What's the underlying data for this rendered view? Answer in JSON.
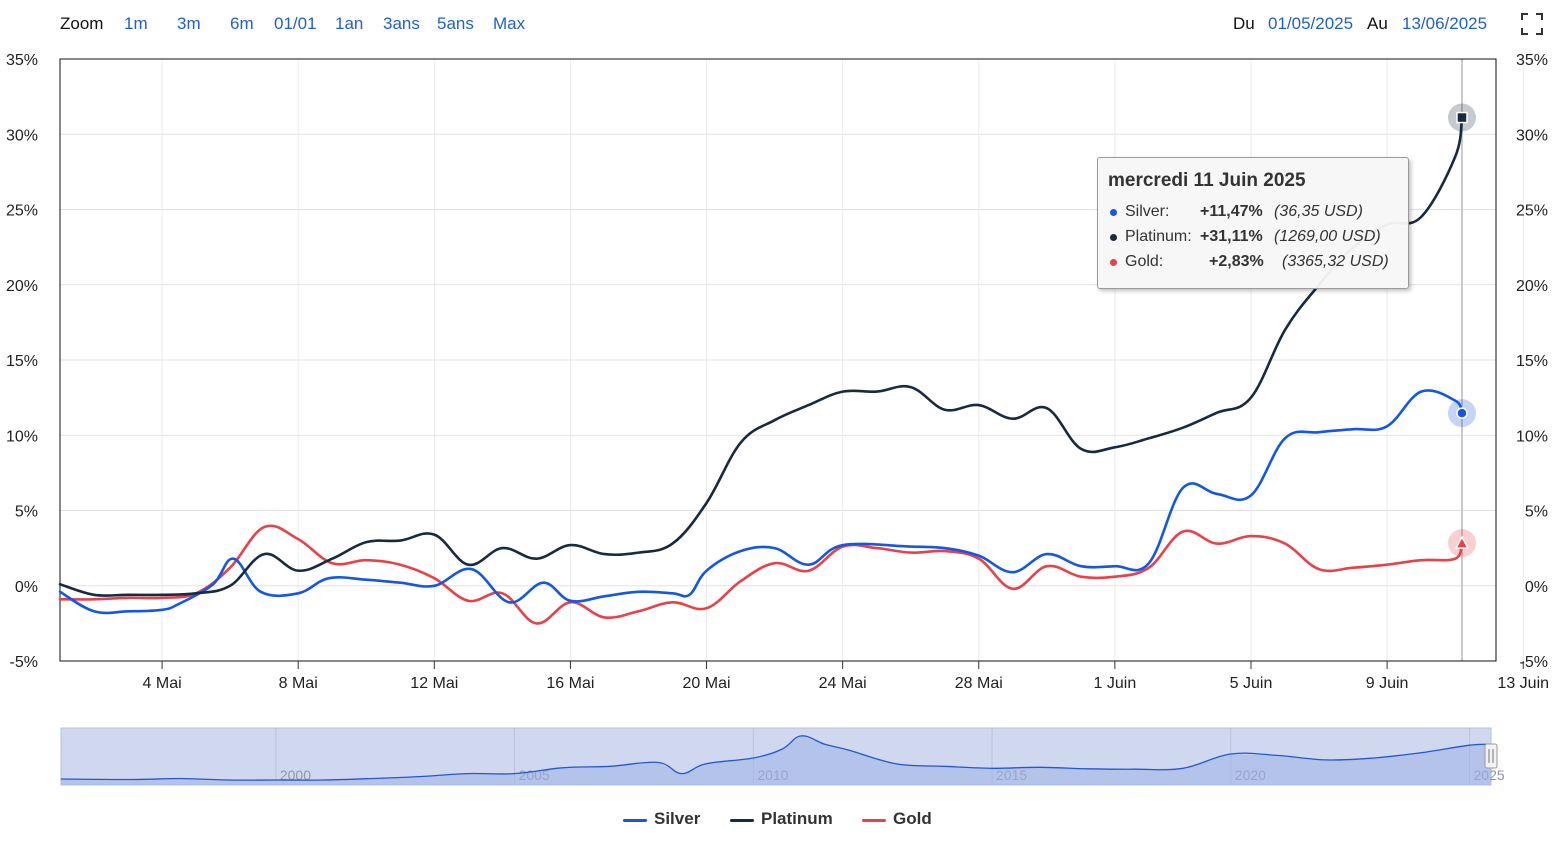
{
  "toolbar": {
    "zoom_label": "Zoom",
    "zoom_options": [
      "1m",
      "3m",
      "6m",
      "01/01",
      "1an",
      "3ans",
      "5ans",
      "Max"
    ],
    "from_label": "Du",
    "from_date": "01/05/2025",
    "to_label": "Au",
    "to_date": "13/06/2025",
    "link_color": "#1f5fd6"
  },
  "tooltip": {
    "title": "mercredi 11 Juin 2025",
    "rows": [
      {
        "name": "Silver:",
        "pct": "+11,47%",
        "usd": "(36,35 USD)",
        "color": "#1456e8"
      },
      {
        "name": "Platinum:",
        "pct": "+31,11%",
        "usd": "(1269,00 USD)",
        "color": "#172a40"
      },
      {
        "name": "Gold:",
        "pct": "+2,83%",
        "usd": "(3365,32 USD)",
        "color": "#e8414a"
      }
    ]
  },
  "legend": [
    {
      "name": "Silver",
      "color": "#1456e8"
    },
    {
      "name": "Platinum",
      "color": "#172a40"
    },
    {
      "name": "Gold",
      "color": "#e8414a"
    }
  ],
  "chart_data": {
    "type": "line",
    "x_unit": "day",
    "x_start_date": "2025-05-01",
    "xlim": [
      "2025-05-01",
      "2025-06-13"
    ],
    "ylim": [
      -5,
      35
    ],
    "y_tick_values": [
      -5,
      0,
      5,
      10,
      15,
      20,
      25,
      30,
      35
    ],
    "y_tick_labels": [
      "-5%",
      "0%",
      "5%",
      "10%",
      "15%",
      "20%",
      "25%",
      "30%",
      "35%"
    ],
    "x_tick_values": [
      3,
      7,
      11,
      15,
      19,
      23,
      27,
      31,
      35,
      39,
      43
    ],
    "x_tick_labels": [
      "4 Mai",
      "8 Mai",
      "12 Mai",
      "16 Mai",
      "20 Mai",
      "24 Mai",
      "28 Mai",
      "1 Juin",
      "5 Juin",
      "9 Juin",
      "13 Juin"
    ],
    "grid": true,
    "crosshair_x": 41.2,
    "series": [
      {
        "name": "Silver",
        "color": "#1456e8",
        "marker": "circle",
        "points": [
          [
            0,
            -0.4
          ],
          [
            1,
            -1.7
          ],
          [
            2,
            -1.7
          ],
          [
            3,
            -1.6
          ],
          [
            3.5,
            -1.2
          ],
          [
            4.5,
            0.1
          ],
          [
            5.1,
            1.8
          ],
          [
            5.9,
            -0.4
          ],
          [
            7,
            -0.5
          ],
          [
            7.9,
            0.5
          ],
          [
            9,
            0.4
          ],
          [
            10,
            0.2
          ],
          [
            11,
            0.0
          ],
          [
            12.1,
            1.1
          ],
          [
            13.2,
            -1.1
          ],
          [
            14.2,
            0.2
          ],
          [
            15,
            -1.0
          ],
          [
            16,
            -0.7
          ],
          [
            17,
            -0.4
          ],
          [
            18,
            -0.5
          ],
          [
            18.5,
            -0.6
          ],
          [
            19,
            1.0
          ],
          [
            20,
            2.3
          ],
          [
            21,
            2.5
          ],
          [
            22,
            1.4
          ],
          [
            23,
            2.7
          ],
          [
            25,
            2.6
          ],
          [
            26,
            2.5
          ],
          [
            27,
            2.0
          ],
          [
            28,
            0.9
          ],
          [
            29,
            2.1
          ],
          [
            30,
            1.3
          ],
          [
            31,
            1.3
          ],
          [
            32,
            1.5
          ],
          [
            33,
            6.5
          ],
          [
            34,
            6.1
          ],
          [
            35,
            6.0
          ],
          [
            36,
            9.8
          ],
          [
            37,
            10.2
          ],
          [
            38,
            10.4
          ],
          [
            39,
            10.6
          ],
          [
            40,
            12.9
          ],
          [
            41,
            12.3
          ],
          [
            41.2,
            11.47
          ]
        ]
      },
      {
        "name": "Platinum",
        "color": "#172a40",
        "marker": "square",
        "points": [
          [
            0,
            0.1
          ],
          [
            1,
            -0.6
          ],
          [
            2,
            -0.6
          ],
          [
            3,
            -0.6
          ],
          [
            4,
            -0.5
          ],
          [
            5,
            0.0
          ],
          [
            6,
            2.1
          ],
          [
            7,
            1.0
          ],
          [
            8,
            1.8
          ],
          [
            9,
            2.9
          ],
          [
            10,
            3.0
          ],
          [
            11,
            3.4
          ],
          [
            12,
            1.4
          ],
          [
            13,
            2.5
          ],
          [
            14,
            1.8
          ],
          [
            15,
            2.7
          ],
          [
            16,
            2.1
          ],
          [
            17,
            2.2
          ],
          [
            18,
            2.8
          ],
          [
            19,
            5.5
          ],
          [
            20,
            9.5
          ],
          [
            21,
            11.0
          ],
          [
            22,
            12.0
          ],
          [
            23,
            12.9
          ],
          [
            24,
            12.9
          ],
          [
            25,
            13.2
          ],
          [
            26,
            11.7
          ],
          [
            27,
            12.0
          ],
          [
            28,
            11.1
          ],
          [
            29,
            11.8
          ],
          [
            30,
            9.1
          ],
          [
            31,
            9.2
          ],
          [
            32,
            9.8
          ],
          [
            33,
            10.5
          ],
          [
            34,
            11.5
          ],
          [
            35,
            12.5
          ],
          [
            36,
            17.0
          ],
          [
            37,
            20.0
          ],
          [
            38,
            22.5
          ],
          [
            39,
            24.0
          ],
          [
            40,
            24.5
          ],
          [
            41,
            28.5
          ],
          [
            41.2,
            31.11
          ]
        ]
      },
      {
        "name": "Gold",
        "color": "#e8414a",
        "marker": "triangle",
        "points": [
          [
            0,
            -0.9
          ],
          [
            1,
            -0.9
          ],
          [
            2,
            -0.8
          ],
          [
            3,
            -0.8
          ],
          [
            4,
            -0.5
          ],
          [
            5,
            1.2
          ],
          [
            6,
            3.9
          ],
          [
            7,
            3.1
          ],
          [
            8,
            1.5
          ],
          [
            9,
            1.7
          ],
          [
            10,
            1.4
          ],
          [
            11,
            0.5
          ],
          [
            12,
            -1.0
          ],
          [
            13,
            -0.5
          ],
          [
            14,
            -2.5
          ],
          [
            15,
            -1.1
          ],
          [
            16,
            -2.1
          ],
          [
            17,
            -1.7
          ],
          [
            18,
            -1.1
          ],
          [
            19,
            -1.5
          ],
          [
            20,
            0.3
          ],
          [
            21,
            1.5
          ],
          [
            22,
            1.0
          ],
          [
            23,
            2.6
          ],
          [
            24,
            2.5
          ],
          [
            25,
            2.2
          ],
          [
            26,
            2.3
          ],
          [
            27,
            1.8
          ],
          [
            28,
            -0.2
          ],
          [
            29,
            1.3
          ],
          [
            30,
            0.6
          ],
          [
            31,
            0.6
          ],
          [
            32,
            1.2
          ],
          [
            33,
            3.6
          ],
          [
            34,
            2.8
          ],
          [
            35,
            3.3
          ],
          [
            36,
            2.8
          ],
          [
            37,
            1.1
          ],
          [
            38,
            1.2
          ],
          [
            39,
            1.4
          ],
          [
            40,
            1.7
          ],
          [
            41,
            1.8
          ],
          [
            41.2,
            2.83
          ]
        ]
      }
    ]
  },
  "navigator": {
    "year_labels": [
      "2000",
      "2005",
      "2010",
      "2015",
      "2020",
      "2025"
    ],
    "year_values": [
      2000,
      2005,
      2010,
      2015,
      2020,
      2025
    ],
    "x_range": [
      1995.5,
      2025.45
    ],
    "profile": [
      [
        1995.5,
        0.04
      ],
      [
        1997,
        0.03
      ],
      [
        1998,
        0.05
      ],
      [
        1999,
        0.02
      ],
      [
        2000,
        0.02
      ],
      [
        2001,
        0.02
      ],
      [
        2002,
        0.05
      ],
      [
        2003,
        0.09
      ],
      [
        2004,
        0.15
      ],
      [
        2005,
        0.15
      ],
      [
        2006,
        0.27
      ],
      [
        2007,
        0.3
      ],
      [
        2008,
        0.38
      ],
      [
        2008.5,
        0.15
      ],
      [
        2009,
        0.35
      ],
      [
        2010,
        0.47
      ],
      [
        2010.6,
        0.65
      ],
      [
        2011,
        0.92
      ],
      [
        2011.5,
        0.75
      ],
      [
        2012,
        0.63
      ],
      [
        2013,
        0.35
      ],
      [
        2014,
        0.3
      ],
      [
        2015,
        0.26
      ],
      [
        2016,
        0.28
      ],
      [
        2017,
        0.25
      ],
      [
        2018,
        0.24
      ],
      [
        2019,
        0.26
      ],
      [
        2020,
        0.55
      ],
      [
        2021,
        0.52
      ],
      [
        2022,
        0.43
      ],
      [
        2023,
        0.47
      ],
      [
        2024,
        0.58
      ],
      [
        2025,
        0.73
      ],
      [
        2025.45,
        0.75
      ]
    ]
  }
}
